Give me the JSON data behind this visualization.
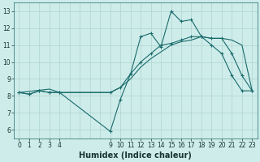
{
  "xlabel": "Humidex (Indice chaleur)",
  "bg_color": "#ceecea",
  "grid_color": "#aed4d0",
  "line_color": "#1a6b6b",
  "xlim": [
    -0.5,
    23.5
  ],
  "ylim": [
    5.5,
    13.5
  ],
  "xticks": [
    0,
    1,
    2,
    3,
    4,
    9,
    10,
    11,
    12,
    13,
    14,
    15,
    16,
    17,
    18,
    19,
    20,
    21,
    22,
    23
  ],
  "yticks": [
    6,
    7,
    8,
    9,
    10,
    11,
    12,
    13
  ],
  "line1_x": [
    0,
    1,
    2,
    3,
    4,
    9,
    10,
    11,
    12,
    13,
    14,
    15,
    16,
    17,
    18,
    19,
    20,
    21,
    22,
    23
  ],
  "line1_y": [
    8.2,
    8.1,
    8.3,
    8.2,
    8.2,
    5.9,
    7.8,
    9.3,
    11.5,
    11.7,
    10.9,
    13.0,
    12.4,
    12.5,
    11.5,
    11.0,
    10.5,
    9.2,
    8.3,
    8.3
  ],
  "line2_x": [
    0,
    1,
    2,
    3,
    4,
    9,
    10,
    11,
    12,
    13,
    14,
    15,
    16,
    17,
    18,
    19,
    20,
    21,
    22,
    23
  ],
  "line2_y": [
    8.2,
    8.1,
    8.3,
    8.2,
    8.2,
    8.2,
    8.5,
    9.3,
    10.0,
    10.5,
    11.0,
    11.1,
    11.3,
    11.5,
    11.5,
    11.4,
    11.4,
    10.5,
    9.2,
    8.3
  ],
  "line3_x": [
    0,
    3,
    4,
    9,
    10,
    11,
    12,
    13,
    14,
    15,
    16,
    17,
    18,
    19,
    20,
    21,
    22,
    23
  ],
  "line3_y": [
    8.2,
    8.4,
    8.2,
    8.2,
    8.5,
    9.0,
    9.7,
    10.2,
    10.6,
    11.0,
    11.2,
    11.3,
    11.5,
    11.4,
    11.4,
    11.3,
    11.0,
    8.3
  ],
  "marker_size": 3.5,
  "linewidth": 0.8,
  "tick_fontsize": 5.5,
  "xlabel_fontsize": 7
}
